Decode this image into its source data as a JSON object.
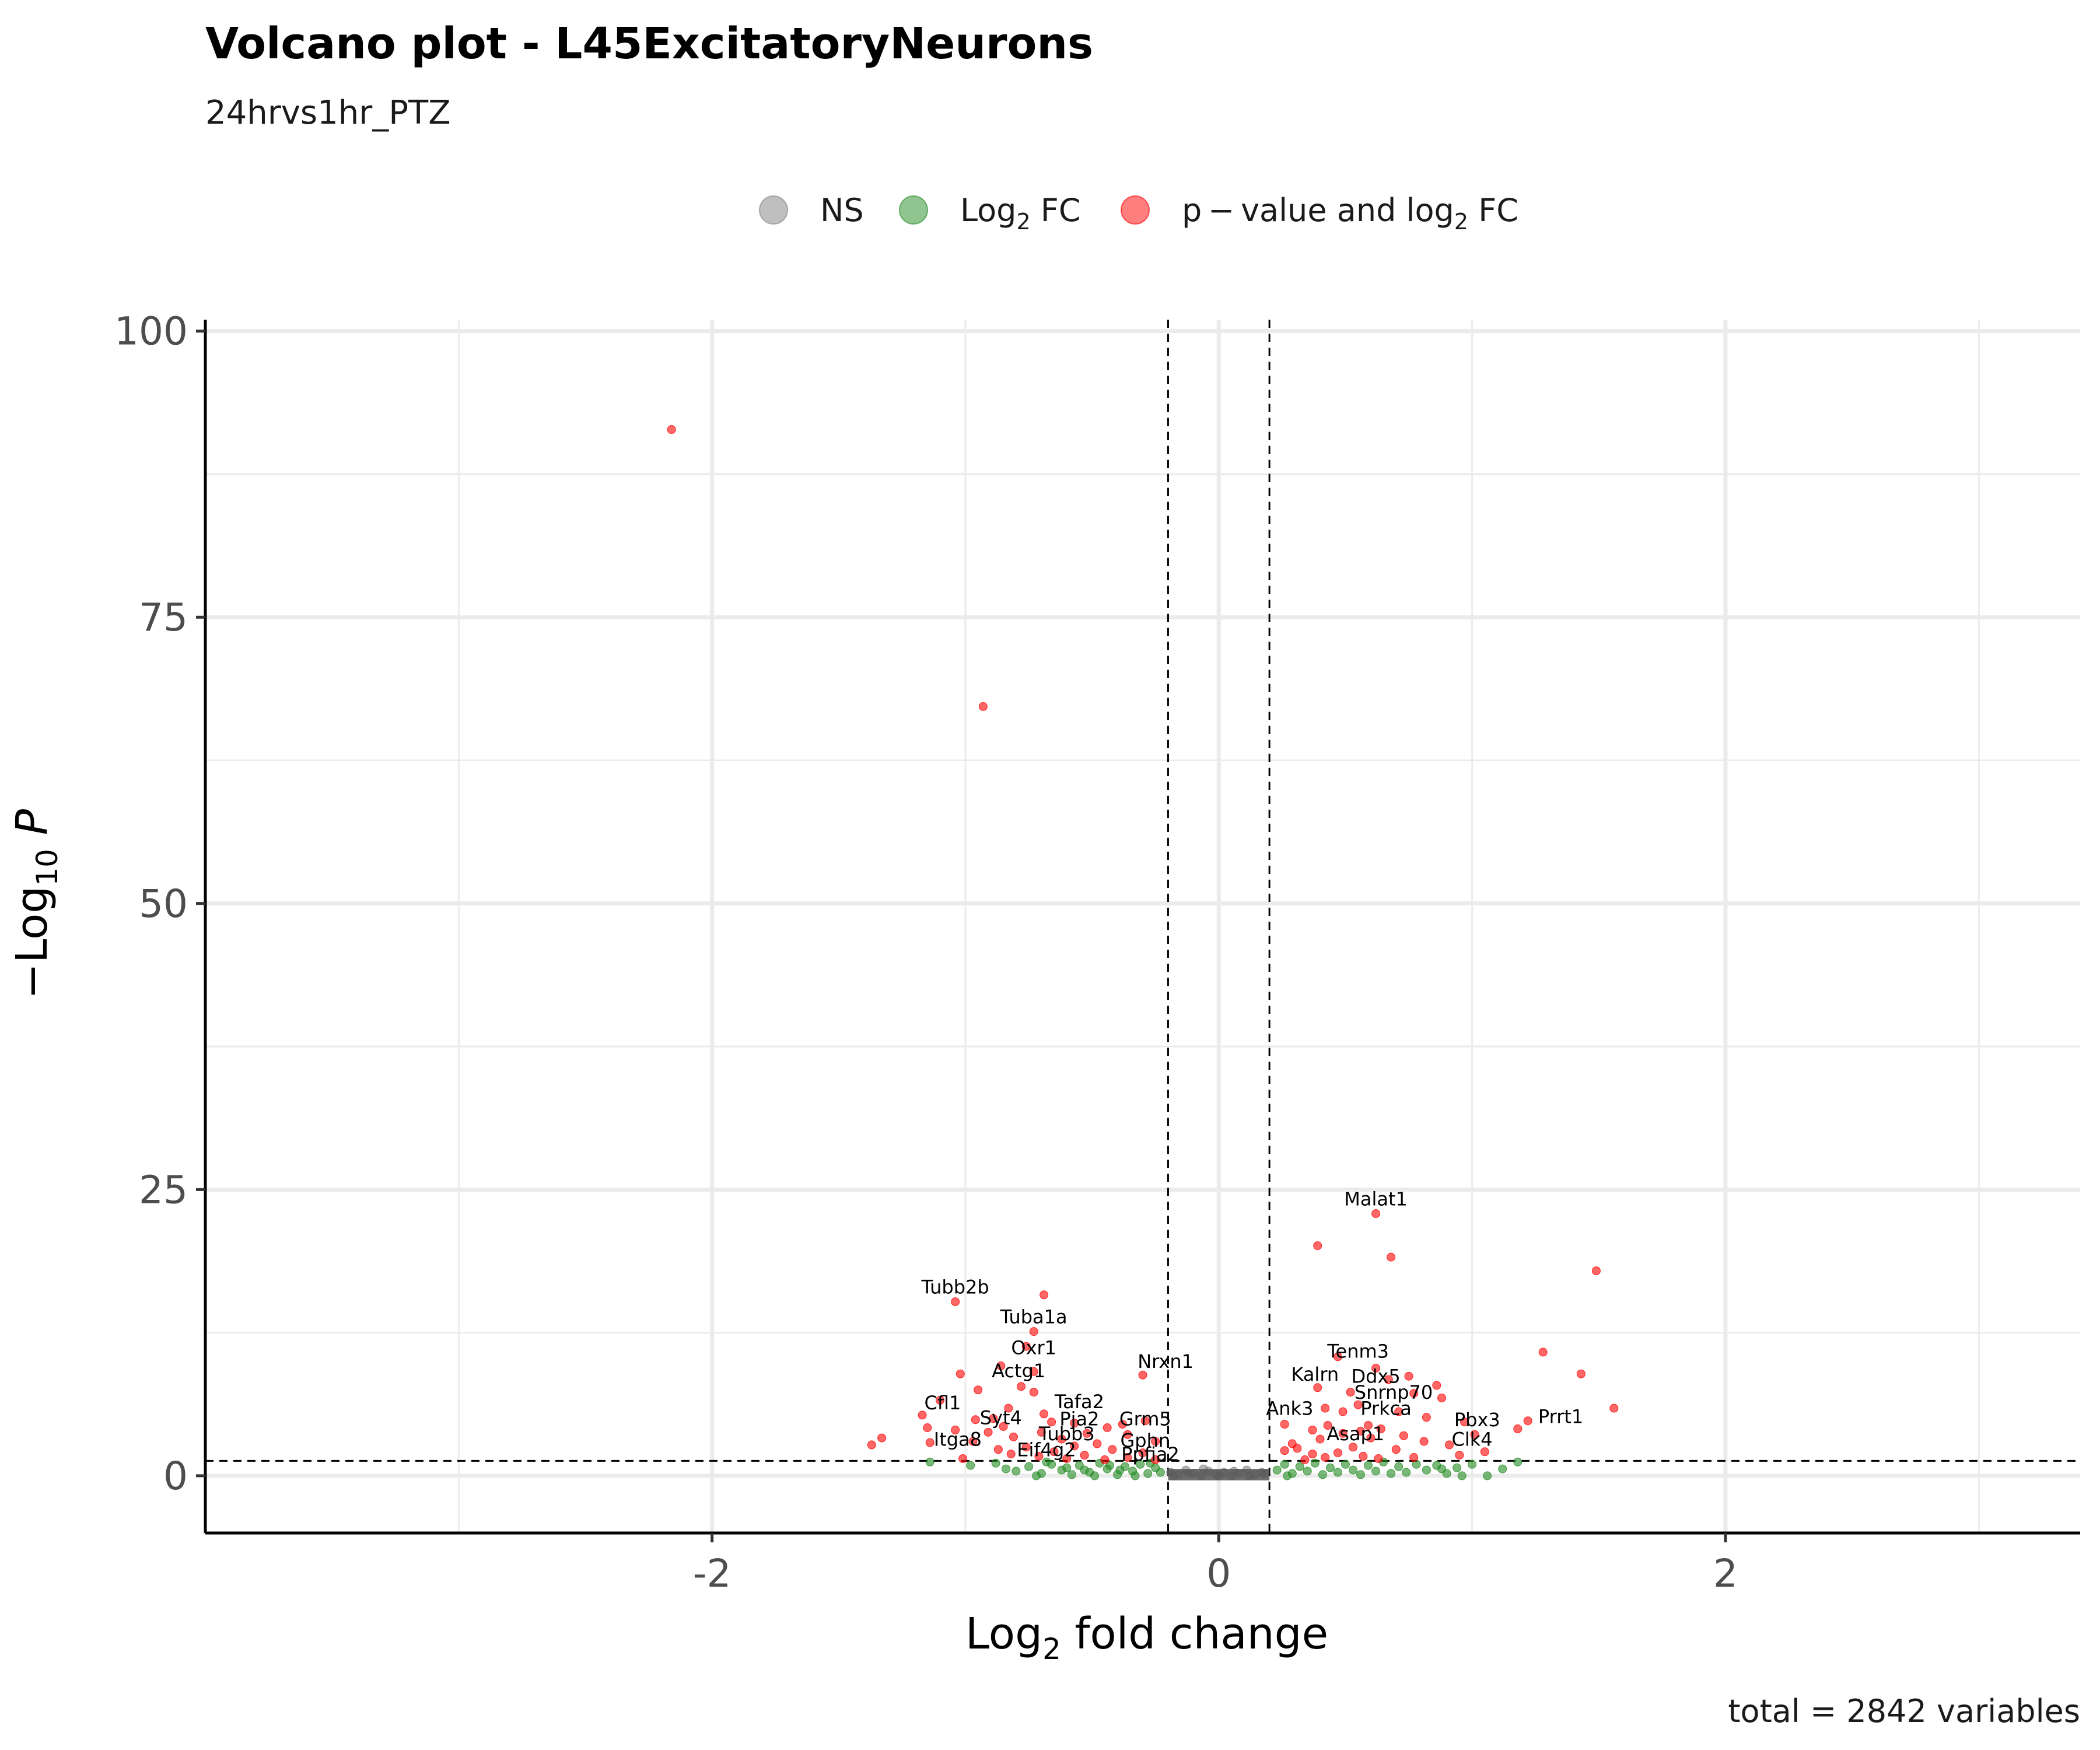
{
  "chart_data": {
    "type": "scatter",
    "title": "Volcano plot - L45ExcitatoryNeurons",
    "subtitle": "24hrvs1hr_PTZ",
    "xlabel_prefix": "Log",
    "xlabel_sub": "2",
    "xlabel_suffix": " fold change",
    "ylabel_prefix": "−Log",
    "ylabel_sub": "10",
    "ylabel_suffix": "P",
    "xlim": [
      -4,
      3.4
    ],
    "ylim": [
      -5,
      101
    ],
    "x_ticks": [
      -2,
      0,
      2
    ],
    "x_tick_labels": [
      "-2",
      "0",
      "2"
    ],
    "y_ticks": [
      0,
      25,
      50,
      75,
      100
    ],
    "y_tick_labels": [
      "0",
      "25",
      "50",
      "75",
      "100"
    ],
    "fc_cutoff": 0.2,
    "p_cutoff_line": 1.3,
    "grid": true,
    "legend_position": "top",
    "legend": [
      {
        "key": "NS",
        "label": "NS",
        "color": "#808080"
      },
      {
        "key": "FC",
        "label_prefix": "Log",
        "label_sub": "2",
        "label_suffix": " FC",
        "color": "#228b22"
      },
      {
        "key": "P_FC",
        "label_prefix": "p − value and log",
        "label_sub": "2",
        "label_suffix": " FC",
        "color": "#ff0000"
      }
    ],
    "caption": "total = 2842 variables",
    "series": [
      {
        "name": "p−value and log2 FC",
        "color": "#ff0000",
        "points": [
          [
            -2.16,
            91.4
          ],
          [
            -0.93,
            67.2
          ],
          [
            0.62,
            22.9
          ],
          [
            0.39,
            20.1
          ],
          [
            0.68,
            19.1
          ],
          [
            1.49,
            17.9
          ],
          [
            -0.69,
            15.8
          ],
          [
            -1.04,
            15.2
          ],
          [
            -0.73,
            12.6
          ],
          [
            -0.76,
            11.3
          ],
          [
            1.28,
            10.8
          ],
          [
            0.47,
            10.4
          ],
          [
            -0.86,
            9.6
          ],
          [
            0.62,
            9.4
          ],
          [
            -0.73,
            9.1
          ],
          [
            -1.02,
            8.9
          ],
          [
            1.43,
            8.9
          ],
          [
            0.75,
            8.7
          ],
          [
            -0.3,
            8.8
          ],
          [
            0.67,
            8.4
          ],
          [
            0.86,
            7.9
          ],
          [
            -0.78,
            7.8
          ],
          [
            0.39,
            7.7
          ],
          [
            -0.95,
            7.5
          ],
          [
            0.52,
            7.3
          ],
          [
            0.77,
            7.2
          ],
          [
            -0.73,
            7.3
          ],
          [
            -1.1,
            6.6
          ],
          [
            0.88,
            6.8
          ],
          [
            0.55,
            6.2
          ],
          [
            1.56,
            5.9
          ],
          [
            0.42,
            5.9
          ],
          [
            -0.83,
            5.9
          ],
          [
            0.71,
            5.6
          ],
          [
            0.49,
            5.6
          ],
          [
            -0.69,
            5.4
          ],
          [
            -1.17,
            5.3
          ],
          [
            0.82,
            5.1
          ],
          [
            -0.89,
            5.0
          ],
          [
            -0.96,
            4.9
          ],
          [
            1.22,
            4.8
          ],
          [
            -0.66,
            4.7
          ],
          [
            -0.29,
            4.8
          ],
          [
            0.97,
            4.7
          ],
          [
            -0.57,
            4.6
          ],
          [
            0.26,
            4.5
          ],
          [
            -0.38,
            4.5
          ],
          [
            0.59,
            4.4
          ],
          [
            -0.85,
            4.3
          ],
          [
            0.43,
            4.4
          ],
          [
            1.18,
            4.1
          ],
          [
            -1.15,
            4.2
          ],
          [
            -0.44,
            4.2
          ],
          [
            -1.04,
            4.0
          ],
          [
            0.64,
            4.1
          ],
          [
            0.37,
            4.0
          ],
          [
            -0.7,
            3.8
          ],
          [
            0.56,
            3.9
          ],
          [
            -0.91,
            3.8
          ],
          [
            -0.52,
            3.7
          ],
          [
            0.49,
            3.7
          ],
          [
            -0.36,
            3.6
          ],
          [
            1.01,
            3.6
          ],
          [
            -0.81,
            3.4
          ],
          [
            0.73,
            3.5
          ],
          [
            -1.33,
            3.3
          ],
          [
            0.6,
            3.3
          ],
          [
            -0.62,
            3.2
          ],
          [
            0.4,
            3.2
          ],
          [
            -0.97,
            3.0
          ],
          [
            -0.25,
            3.0
          ],
          [
            0.81,
            3.0
          ],
          [
            -1.14,
            2.9
          ],
          [
            0.29,
            2.8
          ],
          [
            -0.48,
            2.8
          ],
          [
            0.91,
            2.7
          ],
          [
            -1.37,
            2.7
          ],
          [
            -0.57,
            2.6
          ],
          [
            0.53,
            2.5
          ],
          [
            -0.76,
            2.5
          ],
          [
            0.31,
            2.4
          ],
          [
            -0.87,
            2.3
          ],
          [
            0.7,
            2.3
          ],
          [
            -0.42,
            2.3
          ],
          [
            0.26,
            2.2
          ],
          [
            1.05,
            2.1
          ],
          [
            -0.65,
            2.1
          ],
          [
            0.47,
            2.0
          ],
          [
            -0.3,
            2.0
          ],
          [
            -0.82,
            1.9
          ],
          [
            0.37,
            1.9
          ],
          [
            0.95,
            1.8
          ],
          [
            -0.53,
            1.8
          ],
          [
            -0.71,
            1.7
          ],
          [
            0.57,
            1.7
          ],
          [
            0.42,
            1.6
          ],
          [
            -0.36,
            1.6
          ],
          [
            0.77,
            1.6
          ],
          [
            -0.6,
            1.5
          ],
          [
            -1.01,
            1.5
          ],
          [
            0.63,
            1.5
          ],
          [
            -0.45,
            1.4
          ],
          [
            0.34,
            1.4
          ],
          [
            -0.25,
            1.4
          ]
        ]
      },
      {
        "name": "Log2 FC",
        "color": "#228b22",
        "points": [
          [
            -1.14,
            1.2
          ],
          [
            -0.98,
            0.9
          ],
          [
            -0.88,
            1.1
          ],
          [
            -0.8,
            0.4
          ],
          [
            -0.75,
            0.8
          ],
          [
            -0.7,
            0.2
          ],
          [
            -0.66,
            1.0
          ],
          [
            -0.62,
            0.5
          ],
          [
            -0.58,
            0.1
          ],
          [
            -0.55,
            0.9
          ],
          [
            -0.51,
            0.3
          ],
          [
            -0.47,
            1.1
          ],
          [
            -0.44,
            0.6
          ],
          [
            -0.4,
            0.1
          ],
          [
            -0.37,
            0.8
          ],
          [
            -0.34,
            0.4
          ],
          [
            -0.31,
            1.0
          ],
          [
            -0.28,
            0.2
          ],
          [
            -0.25,
            0.7
          ],
          [
            -0.23,
            0.3
          ],
          [
            -0.84,
            0.6
          ],
          [
            -0.68,
            1.2
          ],
          [
            -0.6,
            0.7
          ],
          [
            -0.53,
            0.5
          ],
          [
            -0.49,
            0.0
          ],
          [
            -0.43,
            0.9
          ],
          [
            -0.39,
            0.5
          ],
          [
            -0.33,
            0.0
          ],
          [
            -0.27,
            1.1
          ],
          [
            -0.72,
            0.0
          ],
          [
            0.23,
            0.5
          ],
          [
            0.26,
            1.0
          ],
          [
            0.29,
            0.2
          ],
          [
            0.32,
            0.8
          ],
          [
            0.35,
            0.4
          ],
          [
            0.38,
            1.1
          ],
          [
            0.41,
            0.1
          ],
          [
            0.44,
            0.7
          ],
          [
            0.47,
            0.3
          ],
          [
            0.5,
            1.0
          ],
          [
            0.53,
            0.5
          ],
          [
            0.56,
            0.1
          ],
          [
            0.59,
            0.9
          ],
          [
            0.62,
            0.4
          ],
          [
            0.65,
            1.2
          ],
          [
            0.68,
            0.2
          ],
          [
            0.71,
            0.8
          ],
          [
            0.74,
            0.3
          ],
          [
            0.78,
            1.0
          ],
          [
            0.82,
            0.5
          ],
          [
            0.86,
            0.9
          ],
          [
            0.9,
            0.2
          ],
          [
            0.94,
            0.7
          ],
          [
            1.0,
            1.0
          ],
          [
            1.06,
            0.0
          ],
          [
            1.12,
            0.6
          ],
          [
            1.18,
            1.2
          ],
          [
            0.96,
            0.0
          ],
          [
            0.88,
            0.6
          ],
          [
            0.27,
            0.0
          ]
        ]
      },
      {
        "name": "NS",
        "color": "#808080",
        "points": [
          [
            -0.19,
            0.3
          ],
          [
            -0.16,
            0.1
          ],
          [
            -0.13,
            0.5
          ],
          [
            -0.1,
            0.2
          ],
          [
            -0.07,
            0.0
          ],
          [
            -0.04,
            0.4
          ],
          [
            -0.01,
            0.1
          ],
          [
            0.02,
            0.3
          ],
          [
            0.05,
            0.0
          ],
          [
            0.08,
            0.2
          ],
          [
            0.11,
            0.5
          ],
          [
            0.14,
            0.1
          ],
          [
            0.17,
            0.3
          ],
          [
            -0.18,
            0.0
          ],
          [
            -0.12,
            0.2
          ],
          [
            -0.06,
            0.6
          ],
          [
            0.0,
            0.0
          ],
          [
            0.06,
            0.4
          ],
          [
            0.12,
            0.0
          ],
          [
            0.18,
            0.2
          ]
        ]
      }
    ],
    "labels": [
      {
        "text": "Malat1",
        "x": 0.62,
        "y": 22.9
      },
      {
        "text": "Tubb2b",
        "x": -1.04,
        "y": 15.2
      },
      {
        "text": "Tuba1a",
        "x": -0.73,
        "y": 12.6
      },
      {
        "text": "Oxr1",
        "x": -0.73,
        "y": 9.9
      },
      {
        "text": "Nrxn1",
        "x": -0.21,
        "y": 8.7
      },
      {
        "text": "Tenm3",
        "x": 0.55,
        "y": 9.6
      },
      {
        "text": "Actg1",
        "x": -0.79,
        "y": 7.9
      },
      {
        "text": "Kalrn",
        "x": 0.38,
        "y": 7.6
      },
      {
        "text": "Ddx5",
        "x": 0.62,
        "y": 7.4
      },
      {
        "text": "Snrnp70",
        "x": 0.69,
        "y": 6.0
      },
      {
        "text": "Cfl1",
        "x": -1.09,
        "y": 5.1
      },
      {
        "text": "Tafa2",
        "x": -0.55,
        "y": 5.2
      },
      {
        "text": "Ank3",
        "x": 0.28,
        "y": 4.6
      },
      {
        "text": "Prkca",
        "x": 0.66,
        "y": 4.6
      },
      {
        "text": "Syt4",
        "x": -0.86,
        "y": 3.8
      },
      {
        "text": "Pja2",
        "x": -0.55,
        "y": 3.7
      },
      {
        "text": "Grm5",
        "x": -0.29,
        "y": 3.7
      },
      {
        "text": "Pbx3",
        "x": 1.02,
        "y": 3.6
      },
      {
        "text": "Prrt1",
        "x": 1.35,
        "y": 3.9
      },
      {
        "text": "Tubb3",
        "x": -0.6,
        "y": 2.4
      },
      {
        "text": "Asap1",
        "x": 0.54,
        "y": 2.4
      },
      {
        "text": "Itga8",
        "x": -1.03,
        "y": 1.9
      },
      {
        "text": "Gphn",
        "x": -0.29,
        "y": 1.8
      },
      {
        "text": "Clk4",
        "x": 1.0,
        "y": 1.9
      },
      {
        "text": "Eif4g2",
        "x": -0.68,
        "y": 1.0
      },
      {
        "text": "Ppfia2",
        "x": -0.27,
        "y": 0.6
      }
    ]
  }
}
